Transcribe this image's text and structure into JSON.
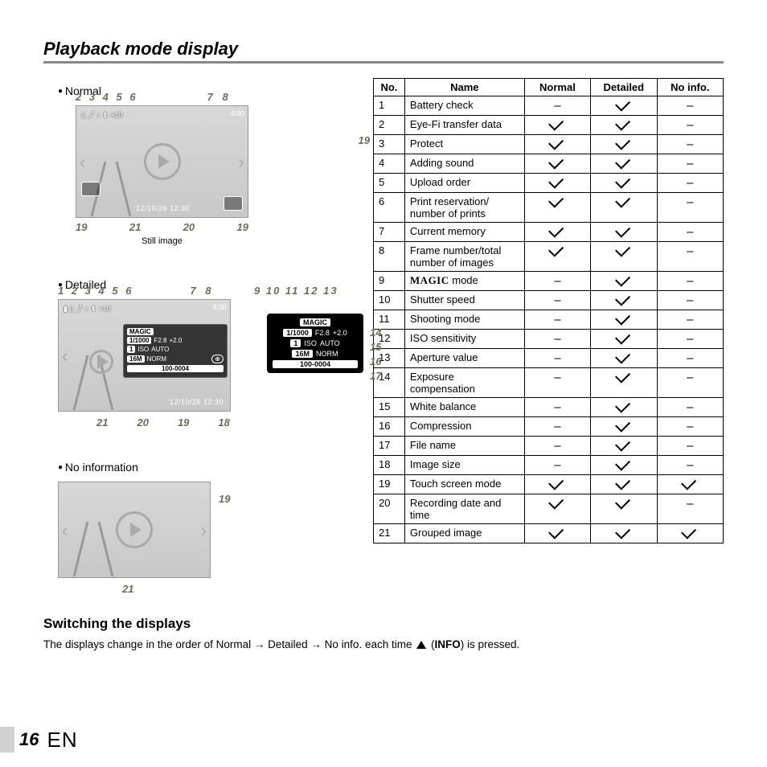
{
  "page": {
    "title": "Playback mode display",
    "number": "16",
    "lang": "EN"
  },
  "modes": {
    "normal": {
      "label": "Normal",
      "caption": "Still image",
      "topNums": "2 3 4 5   6",
      "topNumsR": "7  8",
      "sideNum": "19",
      "bottomNums": [
        "19",
        "21",
        "20",
        "19"
      ],
      "date": "'12/10/26 12:30",
      "frame": "4/30"
    },
    "detailed": {
      "label": "Detailed",
      "topNums": "1 2 3 4 5    6",
      "topNumsR": "7  8",
      "rightNums": "9  10  11    12 13",
      "rightSideNums": [
        "14",
        "15",
        "16",
        "17"
      ],
      "bottomNums": [
        "21",
        "20",
        "19",
        "18"
      ],
      "frame": "4/30",
      "panel": {
        "magic": "MAGIC",
        "r1": [
          "1/1000",
          "F2.8",
          "+2.0"
        ],
        "r2": [
          "1",
          "ISO",
          "AUTO"
        ],
        "r3": [
          "16M",
          "NORM"
        ],
        "file": "100-0004"
      },
      "callout": {
        "magic": "MAGIC",
        "r1": [
          "1/1000",
          "F2.8",
          "+2.0"
        ],
        "r2": [
          "1",
          "ISO",
          "AUTO"
        ],
        "r3": [
          "16M",
          "NORM"
        ],
        "file": "100-0004"
      },
      "date": "'12/10/26 12:30"
    },
    "noinfo": {
      "label": "No information",
      "sideNum": "19",
      "bottomNum": "21"
    }
  },
  "table": {
    "headers": [
      "No.",
      "Name",
      "Normal",
      "Detailed",
      "No info."
    ],
    "rows": [
      {
        "no": "1",
        "name": "Battery check",
        "n": "–",
        "d": "R",
        "x": "–"
      },
      {
        "no": "2",
        "name": "Eye-Fi transfer data",
        "n": "R",
        "d": "R",
        "x": "–"
      },
      {
        "no": "3",
        "name": "Protect",
        "n": "R",
        "d": "R",
        "x": "–"
      },
      {
        "no": "4",
        "name": "Adding sound",
        "n": "R",
        "d": "R",
        "x": "–"
      },
      {
        "no": "5",
        "name": "Upload order",
        "n": "R",
        "d": "R",
        "x": "–"
      },
      {
        "no": "6",
        "name": "Print reservation/ number of prints",
        "n": "R",
        "d": "R",
        "x": "–"
      },
      {
        "no": "7",
        "name": "Current memory",
        "n": "R",
        "d": "R",
        "x": "–"
      },
      {
        "no": "8",
        "name": "Frame number/total number of images",
        "n": "R",
        "d": "R",
        "x": "–"
      },
      {
        "no": "9",
        "name": "MAGIC mode",
        "n": "–",
        "d": "R",
        "x": "–",
        "magic": true
      },
      {
        "no": "10",
        "name": "Shutter speed",
        "n": "–",
        "d": "R",
        "x": "–"
      },
      {
        "no": "11",
        "name": "Shooting mode",
        "n": "–",
        "d": "R",
        "x": "–"
      },
      {
        "no": "12",
        "name": "ISO sensitivity",
        "n": "–",
        "d": "R",
        "x": "–"
      },
      {
        "no": "13",
        "name": "Aperture value",
        "n": "–",
        "d": "R",
        "x": "–"
      },
      {
        "no": "14",
        "name": "Exposure compensation",
        "n": "–",
        "d": "R",
        "x": "–"
      },
      {
        "no": "15",
        "name": "White balance",
        "n": "–",
        "d": "R",
        "x": "–"
      },
      {
        "no": "16",
        "name": "Compression",
        "n": "–",
        "d": "R",
        "x": "–"
      },
      {
        "no": "17",
        "name": "File name",
        "n": "–",
        "d": "R",
        "x": "–"
      },
      {
        "no": "18",
        "name": "Image size",
        "n": "–",
        "d": "R",
        "x": "–"
      },
      {
        "no": "19",
        "name": "Touch screen mode",
        "n": "R",
        "d": "R",
        "x": "R"
      },
      {
        "no": "20",
        "name": "Recording date and time",
        "n": "R",
        "d": "R",
        "x": "–"
      },
      {
        "no": "21",
        "name": "Grouped image",
        "n": "R",
        "d": "R",
        "x": "R"
      }
    ]
  },
  "switching": {
    "heading": "Switching the displays",
    "body_a": "The displays change in the order of Normal → Detailed → No info. each time ",
    "body_b": " (",
    "body_info": "INFO",
    "body_c": ") is pressed."
  }
}
